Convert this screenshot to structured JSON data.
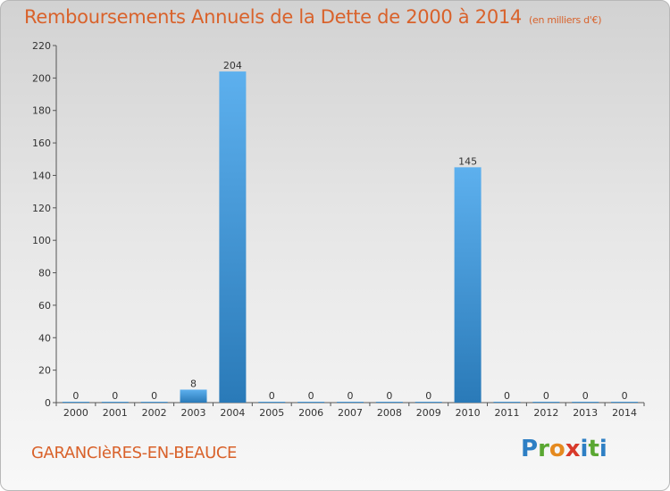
{
  "title": "Remboursements Annuels de la Dette de 2000 à 2014",
  "subtitle": "(en milliers d'€)",
  "location": "GARANCIèRES-EN-BEAUCE",
  "logo": {
    "letters": [
      "P",
      "r",
      "o",
      "x",
      "i",
      "t",
      "i"
    ]
  },
  "colors": {
    "title": "#d9622b",
    "bar_top": "#5db0ee",
    "bar_bottom": "#2a7ab8"
  },
  "chart_data": {
    "type": "bar",
    "title": "Remboursements Annuels de la Dette de 2000 à 2014",
    "subtitle": "(en milliers d'€)",
    "categories": [
      "2000",
      "2001",
      "2002",
      "2003",
      "2004",
      "2005",
      "2006",
      "2007",
      "2008",
      "2009",
      "2010",
      "2011",
      "2012",
      "2013",
      "2014"
    ],
    "values": [
      0,
      0,
      0,
      8,
      204,
      0,
      0,
      0,
      0,
      0,
      145,
      0,
      0,
      0,
      0
    ],
    "data_labels": [
      "0",
      "0",
      "0",
      "8",
      "204",
      "0",
      "0",
      "0",
      "0",
      "0",
      "145",
      "0",
      "0",
      "0",
      "0"
    ],
    "ylim": [
      0,
      220
    ],
    "yticks": [
      0,
      20,
      40,
      60,
      80,
      100,
      120,
      140,
      160,
      180,
      200,
      220
    ],
    "grid": false
  }
}
